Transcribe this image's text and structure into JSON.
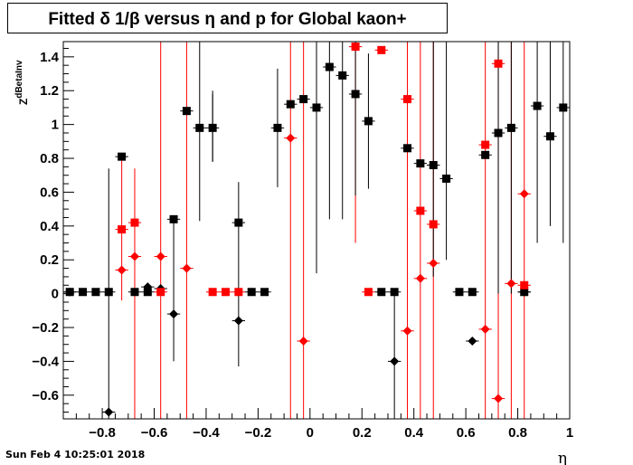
{
  "title": "Fitted δ 1/β versus η and p for Global kaon+",
  "footer": "Sun Feb  4 10:25:01 2018",
  "chart_data": {
    "type": "scatter",
    "title": "Fitted δ 1/β versus η and p for Global kaon+",
    "xlabel": "η",
    "ylabel": "Z",
    "ylabel_sub": "dBetaInv",
    "xlim": [
      -0.95,
      1.0
    ],
    "ylim": [
      -0.74,
      1.49
    ],
    "xticks": [
      -0.8,
      -0.6,
      -0.4,
      -0.2,
      0,
      0.2,
      0.4,
      0.6,
      0.8,
      1
    ],
    "xtick_labels": [
      "−0.8",
      "−0.6",
      "−0.4",
      "−0.2",
      "0",
      "0.2",
      "0.4",
      "0.6",
      "0.8",
      "1"
    ],
    "yticks": [
      -0.6,
      -0.4,
      -0.2,
      0,
      0.2,
      0.4,
      0.6,
      0.8,
      1,
      1.2,
      1.4
    ],
    "ytick_labels": [
      "−0.6",
      "−0.4",
      "−0.2",
      "0",
      "0.2",
      "0.4",
      "0.6",
      "0.8",
      "1",
      "1.2",
      "1.4"
    ],
    "grid": false,
    "series": [
      {
        "color": "#000000",
        "marker": "square",
        "points": [
          {
            "x": -0.925,
            "y": 0.01,
            "ey": 0.0
          },
          {
            "x": -0.875,
            "y": 0.01,
            "ey": 0.0
          },
          {
            "x": -0.825,
            "y": 0.01,
            "ey": 0.0
          },
          {
            "x": -0.775,
            "y": 0.01,
            "ey": 0.0
          },
          {
            "x": -0.725,
            "y": 0.81,
            "ey": 0.0
          },
          {
            "x": -0.675,
            "y": 0.01,
            "ey": 0.0
          },
          {
            "x": -0.625,
            "y": 0.01,
            "ey": 0.0
          },
          {
            "x": -0.525,
            "y": 0.44,
            "ey": 0.0
          },
          {
            "x": -0.475,
            "y": 1.08,
            "ey": 0.0
          },
          {
            "x": -0.425,
            "y": 0.98,
            "ey": 0.55
          },
          {
            "x": -0.375,
            "y": 0.98,
            "ey": 0.2
          },
          {
            "x": -0.275,
            "y": 0.42,
            "ey": 0.0
          },
          {
            "x": -0.225,
            "y": 0.01,
            "ey": 0.0
          },
          {
            "x": -0.175,
            "y": 0.01,
            "ey": 0.0
          },
          {
            "x": -0.125,
            "y": 0.98,
            "ey": 0.35
          },
          {
            "x": -0.075,
            "y": 1.12,
            "ey": 0.0
          },
          {
            "x": -0.025,
            "y": 1.15,
            "ey": 0.0
          },
          {
            "x": 0.025,
            "y": 1.1,
            "ey": 0.98
          },
          {
            "x": 0.075,
            "y": 1.34,
            "ey": 0.9
          },
          {
            "x": 0.125,
            "y": 1.29,
            "ey": 0.85
          },
          {
            "x": 0.175,
            "y": 1.18,
            "ey": 0.6
          },
          {
            "x": 0.225,
            "y": 1.02,
            "ey": 0.4
          },
          {
            "x": 0.275,
            "y": 0.01,
            "ey": 0.0
          },
          {
            "x": 0.325,
            "y": 0.01,
            "ey": 0.0
          },
          {
            "x": 0.375,
            "y": 0.86,
            "ey": 0.0
          },
          {
            "x": 0.425,
            "y": 0.77,
            "ey": 0.0
          },
          {
            "x": 0.475,
            "y": 0.76,
            "ey": 0.0
          },
          {
            "x": 0.525,
            "y": 0.68,
            "ey": 0.0
          },
          {
            "x": 0.575,
            "y": 0.01,
            "ey": 0.0
          },
          {
            "x": 0.625,
            "y": 0.01,
            "ey": 0.0
          },
          {
            "x": 0.675,
            "y": 0.82,
            "ey": 0.0
          },
          {
            "x": 0.725,
            "y": 0.95,
            "ey": 0.0
          },
          {
            "x": 0.775,
            "y": 0.98,
            "ey": 0.0
          },
          {
            "x": 0.825,
            "y": 0.01,
            "ey": 0.0
          },
          {
            "x": 0.875,
            "y": 1.11,
            "ey": 0.0
          },
          {
            "x": 0.925,
            "y": 0.93,
            "ey": 0.0
          },
          {
            "x": 0.975,
            "y": 1.1,
            "ey": 0.0
          }
        ]
      },
      {
        "color": "#000000",
        "marker": "diamond",
        "points": [
          {
            "x": -0.925,
            "y": 0.01,
            "ey": 0.0
          },
          {
            "x": -0.775,
            "y": -0.7,
            "ey": 0.0
          },
          {
            "x": -0.625,
            "y": 0.04,
            "ey": 0.0
          },
          {
            "x": -0.575,
            "y": 0.03,
            "ey": 0.0
          },
          {
            "x": -0.525,
            "y": -0.12,
            "ey": 0.0
          },
          {
            "x": -0.275,
            "y": -0.16,
            "ey": 0.0
          },
          {
            "x": 0.325,
            "y": -0.4,
            "ey": 0.0
          },
          {
            "x": 0.625,
            "y": -0.28,
            "ey": 0.0
          },
          {
            "x": 0.825,
            "y": 0.01,
            "ey": 0.0
          }
        ]
      },
      {
        "color": "#ff0000",
        "marker": "square",
        "points": [
          {
            "x": -0.725,
            "y": 0.38,
            "ey": 0.0
          },
          {
            "x": -0.675,
            "y": 0.42,
            "ey": 0.0
          },
          {
            "x": -0.575,
            "y": 0.01,
            "ey": 0.0
          },
          {
            "x": -0.375,
            "y": 0.01,
            "ey": 0.0
          },
          {
            "x": -0.325,
            "y": 0.01,
            "ey": 0.0
          },
          {
            "x": -0.275,
            "y": 0.01,
            "ey": 0.0
          },
          {
            "x": 0.175,
            "y": 1.46,
            "ey": 0.0
          },
          {
            "x": 0.225,
            "y": 0.01,
            "ey": 0.0
          },
          {
            "x": 0.275,
            "y": 1.44,
            "ey": 0.0
          },
          {
            "x": 0.375,
            "y": 1.15,
            "ey": 0.0
          },
          {
            "x": 0.425,
            "y": 0.49,
            "ey": 0.0
          },
          {
            "x": 0.475,
            "y": 0.41,
            "ey": 0.0
          },
          {
            "x": 0.675,
            "y": 0.88,
            "ey": 0.0
          },
          {
            "x": 0.725,
            "y": 1.36,
            "ey": 0.0
          },
          {
            "x": 0.825,
            "y": 0.05,
            "ey": 0.0
          }
        ]
      },
      {
        "color": "#ff0000",
        "marker": "diamond",
        "points": [
          {
            "x": -0.725,
            "y": 0.14,
            "ey": 0.0
          },
          {
            "x": -0.675,
            "y": 0.22,
            "ey": 0.0
          },
          {
            "x": -0.575,
            "y": 0.22,
            "ey": 0.0
          },
          {
            "x": -0.475,
            "y": 0.15,
            "ey": 0.0
          },
          {
            "x": -0.075,
            "y": 0.92,
            "ey": 0.0
          },
          {
            "x": -0.025,
            "y": -0.28,
            "ey": 0.0
          },
          {
            "x": 0.375,
            "y": -0.22,
            "ey": 0.0
          },
          {
            "x": 0.425,
            "y": 0.09,
            "ey": 0.0
          },
          {
            "x": 0.475,
            "y": 0.18,
            "ey": 0.0
          },
          {
            "x": 0.675,
            "y": -0.21,
            "ey": 0.0
          },
          {
            "x": 0.725,
            "y": -0.62,
            "ey": 0.0
          },
          {
            "x": 0.775,
            "y": 0.06,
            "ey": 0.0
          },
          {
            "x": 0.825,
            "y": 0.59,
            "ey": 0.0
          }
        ]
      }
    ],
    "vertical_error_lines": [
      {
        "x": -0.775,
        "ylo": -0.74,
        "yhi": 0.74,
        "color": "#000000"
      },
      {
        "x": -0.725,
        "ylo": -0.04,
        "yhi": 0.8,
        "color": "#ff0000"
      },
      {
        "x": -0.675,
        "ylo": -0.74,
        "yhi": 0.74,
        "color": "#ff0000"
      },
      {
        "x": -0.575,
        "ylo": -0.74,
        "yhi": 1.49,
        "color": "#ff0000"
      },
      {
        "x": -0.525,
        "ylo": -0.4,
        "yhi": 0.44,
        "color": "#000000"
      },
      {
        "x": -0.475,
        "ylo": -0.74,
        "yhi": 1.49,
        "color": "#ff0000"
      },
      {
        "x": -0.275,
        "ylo": -0.43,
        "yhi": 0.66,
        "color": "#000000"
      },
      {
        "x": -0.075,
        "ylo": -0.74,
        "yhi": 1.49,
        "color": "#ff0000"
      },
      {
        "x": -0.025,
        "ylo": -0.74,
        "yhi": 1.49,
        "color": "#ff0000"
      },
      {
        "x": 0.175,
        "ylo": 0.3,
        "yhi": 1.49,
        "color": "#ff0000"
      },
      {
        "x": 0.325,
        "ylo": -0.74,
        "yhi": 0.0,
        "color": "#000000"
      },
      {
        "x": 0.375,
        "ylo": -0.74,
        "yhi": 1.49,
        "color": "#ff0000"
      },
      {
        "x": 0.425,
        "ylo": -0.74,
        "yhi": 1.49,
        "color": "#ff0000"
      },
      {
        "x": 0.475,
        "ylo": -0.74,
        "yhi": 1.49,
        "color": "#ff0000"
      },
      {
        "x": 0.675,
        "ylo": -0.74,
        "yhi": 1.49,
        "color": "#ff0000"
      },
      {
        "x": 0.725,
        "ylo": -0.74,
        "yhi": 1.49,
        "color": "#ff0000"
      },
      {
        "x": 0.775,
        "ylo": -0.74,
        "yhi": 1.49,
        "color": "#ff0000"
      },
      {
        "x": 0.825,
        "ylo": -0.74,
        "yhi": 1.49,
        "color": "#ff0000"
      },
      {
        "x": 0.875,
        "ylo": 0.3,
        "yhi": 1.49,
        "color": "#000000"
      },
      {
        "x": 0.925,
        "ylo": 0.4,
        "yhi": 1.49,
        "color": "#000000"
      },
      {
        "x": 0.975,
        "ylo": 0.3,
        "yhi": 1.49,
        "color": "#000000"
      },
      {
        "x": 0.775,
        "ylo": 0.0,
        "yhi": 1.49,
        "color": "#000000"
      },
      {
        "x": 0.725,
        "ylo": 0.0,
        "yhi": 1.49,
        "color": "#000000"
      },
      {
        "x": 0.525,
        "ylo": 0.2,
        "yhi": 1.49,
        "color": "#000000"
      },
      {
        "x": 0.475,
        "ylo": 0.1,
        "yhi": 1.49,
        "color": "#000000"
      },
      {
        "x": -0.375,
        "ylo": 0.78,
        "yhi": 1.2,
        "color": "#000000"
      }
    ]
  }
}
